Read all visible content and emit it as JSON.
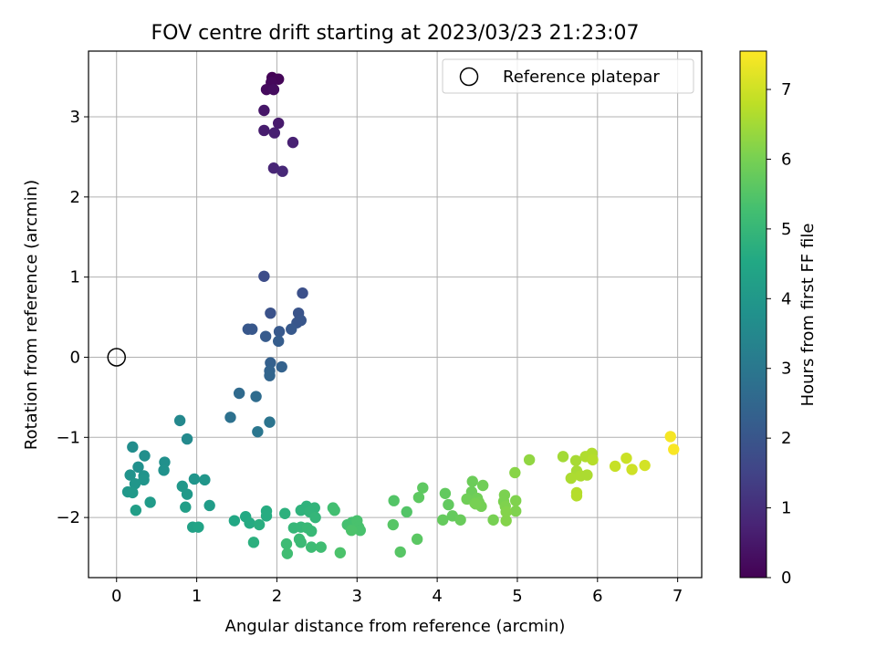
{
  "chart_data": {
    "type": "scatter",
    "title": "FOV centre drift starting at 2023/03/23 21:23:07",
    "xlabel": "Angular distance from reference (arcmin)",
    "ylabel": "Rotation from reference (arcmin)",
    "xlim": [
      -0.35,
      7.3
    ],
    "ylim": [
      -2.75,
      3.82
    ],
    "xticks": [
      0,
      1,
      2,
      3,
      4,
      5,
      6,
      7
    ],
    "yticks": [
      -2,
      -1,
      0,
      1,
      2,
      3
    ],
    "grid": true,
    "legend": {
      "position": "upper right",
      "entries": [
        "Reference platepar"
      ]
    },
    "reference_point": {
      "x": 0,
      "y": 0,
      "label": "Reference platepar"
    },
    "colorbar": {
      "label": "Hours from first FF file",
      "colormap": "viridis",
      "range": [
        0,
        7.55
      ],
      "ticks": [
        0,
        1,
        2,
        3,
        4,
        5,
        6,
        7
      ]
    },
    "points": [
      {
        "x": 1.94,
        "y": 3.49,
        "h": 0.05
      },
      {
        "x": 2.02,
        "y": 3.47,
        "h": 0.1
      },
      {
        "x": 1.93,
        "y": 3.43,
        "h": 0.15
      },
      {
        "x": 1.87,
        "y": 3.34,
        "h": 0.2
      },
      {
        "x": 1.96,
        "y": 3.34,
        "h": 0.25
      },
      {
        "x": 1.84,
        "y": 3.08,
        "h": 0.45
      },
      {
        "x": 2.02,
        "y": 2.92,
        "h": 0.55
      },
      {
        "x": 1.84,
        "y": 2.83,
        "h": 0.6
      },
      {
        "x": 1.97,
        "y": 2.8,
        "h": 0.65
      },
      {
        "x": 2.2,
        "y": 2.68,
        "h": 0.7
      },
      {
        "x": 1.96,
        "y": 2.36,
        "h": 0.8
      },
      {
        "x": 2.07,
        "y": 2.32,
        "h": 0.85
      },
      {
        "x": 1.84,
        "y": 1.01,
        "h": 1.75
      },
      {
        "x": 2.32,
        "y": 0.8,
        "h": 1.85
      },
      {
        "x": 1.92,
        "y": 0.55,
        "h": 1.9
      },
      {
        "x": 2.27,
        "y": 0.55,
        "h": 1.95
      },
      {
        "x": 2.3,
        "y": 0.46,
        "h": 2.0
      },
      {
        "x": 2.25,
        "y": 0.43,
        "h": 2.0
      },
      {
        "x": 1.64,
        "y": 0.35,
        "h": 2.05
      },
      {
        "x": 1.69,
        "y": 0.35,
        "h": 2.05
      },
      {
        "x": 2.18,
        "y": 0.35,
        "h": 2.1
      },
      {
        "x": 2.03,
        "y": 0.32,
        "h": 2.1
      },
      {
        "x": 1.86,
        "y": 0.26,
        "h": 2.15
      },
      {
        "x": 2.02,
        "y": 0.2,
        "h": 2.2
      },
      {
        "x": 1.92,
        "y": -0.07,
        "h": 2.3
      },
      {
        "x": 2.06,
        "y": -0.12,
        "h": 2.35
      },
      {
        "x": 1.91,
        "y": -0.17,
        "h": 2.4
      },
      {
        "x": 1.91,
        "y": -0.23,
        "h": 2.45
      },
      {
        "x": 1.53,
        "y": -0.45,
        "h": 2.6
      },
      {
        "x": 1.74,
        "y": -0.49,
        "h": 2.65
      },
      {
        "x": 1.42,
        "y": -0.75,
        "h": 2.8
      },
      {
        "x": 1.91,
        "y": -0.81,
        "h": 2.9
      },
      {
        "x": 1.76,
        "y": -0.93,
        "h": 2.95
      },
      {
        "x": 0.79,
        "y": -0.79,
        "h": 3.5
      },
      {
        "x": 0.88,
        "y": -1.02,
        "h": 3.55
      },
      {
        "x": 0.2,
        "y": -1.12,
        "h": 3.65
      },
      {
        "x": 0.35,
        "y": -1.23,
        "h": 3.7
      },
      {
        "x": 0.6,
        "y": -1.31,
        "h": 3.75
      },
      {
        "x": 0.27,
        "y": -1.37,
        "h": 3.75
      },
      {
        "x": 0.59,
        "y": -1.41,
        "h": 3.8
      },
      {
        "x": 0.17,
        "y": -1.47,
        "h": 3.85
      },
      {
        "x": 0.34,
        "y": -1.48,
        "h": 3.85
      },
      {
        "x": 0.34,
        "y": -1.53,
        "h": 3.9
      },
      {
        "x": 0.97,
        "y": -1.52,
        "h": 3.9
      },
      {
        "x": 1.1,
        "y": -1.53,
        "h": 3.95
      },
      {
        "x": 0.23,
        "y": -1.58,
        "h": 3.95
      },
      {
        "x": 0.82,
        "y": -1.61,
        "h": 4.0
      },
      {
        "x": 0.14,
        "y": -1.68,
        "h": 4.0
      },
      {
        "x": 0.2,
        "y": -1.69,
        "h": 4.05
      },
      {
        "x": 0.88,
        "y": -1.71,
        "h": 4.05
      },
      {
        "x": 0.42,
        "y": -1.81,
        "h": 4.1
      },
      {
        "x": 1.16,
        "y": -1.85,
        "h": 4.15
      },
      {
        "x": 0.86,
        "y": -1.87,
        "h": 4.2
      },
      {
        "x": 0.24,
        "y": -1.91,
        "h": 4.2
      },
      {
        "x": 0.95,
        "y": -2.12,
        "h": 4.3
      },
      {
        "x": 1.02,
        "y": -2.12,
        "h": 4.35
      },
      {
        "x": 1.47,
        "y": -2.04,
        "h": 4.5
      },
      {
        "x": 1.61,
        "y": -1.99,
        "h": 4.55
      },
      {
        "x": 1.66,
        "y": -2.07,
        "h": 4.6
      },
      {
        "x": 1.87,
        "y": -1.92,
        "h": 4.65
      },
      {
        "x": 1.87,
        "y": -1.98,
        "h": 4.65
      },
      {
        "x": 1.78,
        "y": -2.09,
        "h": 4.7
      },
      {
        "x": 1.71,
        "y": -2.31,
        "h": 4.75
      },
      {
        "x": 2.1,
        "y": -1.95,
        "h": 4.8
      },
      {
        "x": 2.3,
        "y": -1.91,
        "h": 4.85
      },
      {
        "x": 2.37,
        "y": -1.86,
        "h": 4.85
      },
      {
        "x": 2.47,
        "y": -1.88,
        "h": 4.9
      },
      {
        "x": 2.41,
        "y": -1.93,
        "h": 4.9
      },
      {
        "x": 2.48,
        "y": -2.0,
        "h": 4.95
      },
      {
        "x": 2.21,
        "y": -2.13,
        "h": 5.0
      },
      {
        "x": 2.3,
        "y": -2.12,
        "h": 5.0
      },
      {
        "x": 2.38,
        "y": -2.13,
        "h": 5.05
      },
      {
        "x": 2.43,
        "y": -2.17,
        "h": 5.05
      },
      {
        "x": 2.28,
        "y": -2.27,
        "h": 5.1
      },
      {
        "x": 2.3,
        "y": -2.31,
        "h": 5.1
      },
      {
        "x": 2.12,
        "y": -2.33,
        "h": 5.15
      },
      {
        "x": 2.43,
        "y": -2.37,
        "h": 5.15
      },
      {
        "x": 2.55,
        "y": -2.37,
        "h": 5.2
      },
      {
        "x": 2.13,
        "y": -2.45,
        "h": 5.2
      },
      {
        "x": 2.7,
        "y": -1.88,
        "h": 5.25
      },
      {
        "x": 2.72,
        "y": -1.91,
        "h": 5.25
      },
      {
        "x": 2.88,
        "y": -2.09,
        "h": 5.3
      },
      {
        "x": 2.94,
        "y": -2.06,
        "h": 5.3
      },
      {
        "x": 3.0,
        "y": -2.04,
        "h": 5.35
      },
      {
        "x": 3.02,
        "y": -2.12,
        "h": 5.35
      },
      {
        "x": 3.04,
        "y": -2.16,
        "h": 5.35
      },
      {
        "x": 2.93,
        "y": -2.16,
        "h": 5.4
      },
      {
        "x": 2.79,
        "y": -2.44,
        "h": 5.4
      },
      {
        "x": 3.46,
        "y": -1.79,
        "h": 5.5
      },
      {
        "x": 3.62,
        "y": -1.93,
        "h": 5.5
      },
      {
        "x": 3.45,
        "y": -2.09,
        "h": 5.55
      },
      {
        "x": 3.54,
        "y": -2.43,
        "h": 5.55
      },
      {
        "x": 3.75,
        "y": -2.27,
        "h": 5.6
      },
      {
        "x": 3.82,
        "y": -1.63,
        "h": 5.65
      },
      {
        "x": 3.77,
        "y": -1.75,
        "h": 5.65
      },
      {
        "x": 4.1,
        "y": -1.7,
        "h": 5.7
      },
      {
        "x": 4.14,
        "y": -1.84,
        "h": 5.7
      },
      {
        "x": 4.19,
        "y": -1.98,
        "h": 5.75
      },
      {
        "x": 4.07,
        "y": -2.03,
        "h": 5.75
      },
      {
        "x": 4.29,
        "y": -2.03,
        "h": 5.8
      },
      {
        "x": 4.44,
        "y": -1.55,
        "h": 5.85
      },
      {
        "x": 4.43,
        "y": -1.68,
        "h": 5.85
      },
      {
        "x": 4.57,
        "y": -1.6,
        "h": 5.9
      },
      {
        "x": 4.37,
        "y": -1.77,
        "h": 5.9
      },
      {
        "x": 4.5,
        "y": -1.76,
        "h": 5.9
      },
      {
        "x": 4.47,
        "y": -1.82,
        "h": 5.95
      },
      {
        "x": 4.52,
        "y": -1.81,
        "h": 5.95
      },
      {
        "x": 4.55,
        "y": -1.86,
        "h": 5.95
      },
      {
        "x": 4.48,
        "y": -1.83,
        "h": 6.0
      },
      {
        "x": 4.7,
        "y": -2.03,
        "h": 6.0
      },
      {
        "x": 4.84,
        "y": -1.72,
        "h": 6.05
      },
      {
        "x": 4.83,
        "y": -1.8,
        "h": 6.05
      },
      {
        "x": 4.85,
        "y": -1.86,
        "h": 6.1
      },
      {
        "x": 4.98,
        "y": -1.79,
        "h": 6.1
      },
      {
        "x": 4.98,
        "y": -1.92,
        "h": 6.1
      },
      {
        "x": 4.86,
        "y": -1.93,
        "h": 6.15
      },
      {
        "x": 4.86,
        "y": -2.04,
        "h": 6.15
      },
      {
        "x": 4.97,
        "y": -1.44,
        "h": 6.2
      },
      {
        "x": 5.15,
        "y": -1.28,
        "h": 6.3
      },
      {
        "x": 5.57,
        "y": -1.24,
        "h": 6.5
      },
      {
        "x": 5.73,
        "y": -1.29,
        "h": 6.55
      },
      {
        "x": 5.74,
        "y": -1.42,
        "h": 6.55
      },
      {
        "x": 5.67,
        "y": -1.51,
        "h": 6.6
      },
      {
        "x": 5.79,
        "y": -1.48,
        "h": 6.6
      },
      {
        "x": 5.87,
        "y": -1.47,
        "h": 6.6
      },
      {
        "x": 5.85,
        "y": -1.24,
        "h": 6.65
      },
      {
        "x": 5.93,
        "y": -1.2,
        "h": 6.65
      },
      {
        "x": 5.94,
        "y": -1.28,
        "h": 6.7
      },
      {
        "x": 5.74,
        "y": -1.69,
        "h": 6.7
      },
      {
        "x": 5.74,
        "y": -1.73,
        "h": 6.7
      },
      {
        "x": 6.22,
        "y": -1.36,
        "h": 6.9
      },
      {
        "x": 6.36,
        "y": -1.26,
        "h": 6.95
      },
      {
        "x": 6.43,
        "y": -1.4,
        "h": 7.0
      },
      {
        "x": 6.59,
        "y": -1.35,
        "h": 7.05
      },
      {
        "x": 6.91,
        "y": -0.99,
        "h": 7.45
      },
      {
        "x": 6.95,
        "y": -1.15,
        "h": 7.5
      }
    ]
  }
}
